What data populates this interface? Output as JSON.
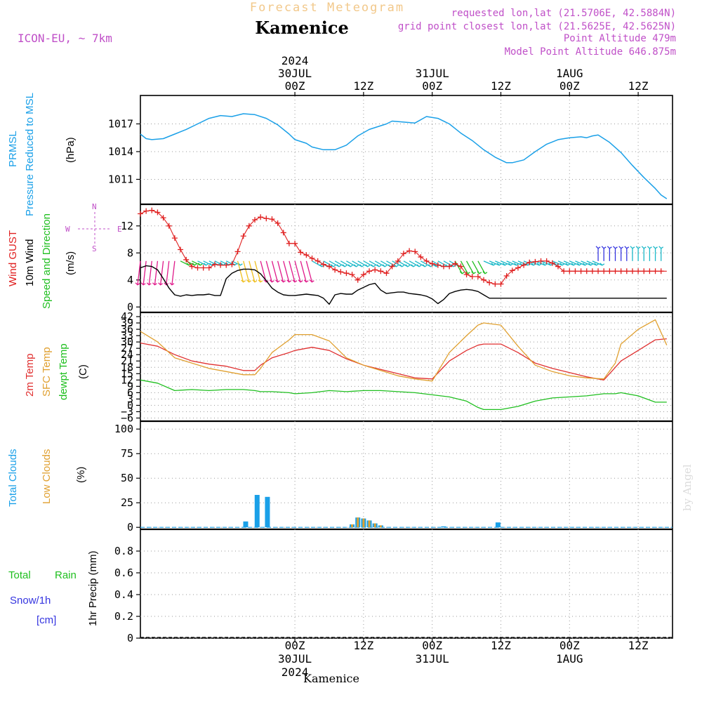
{
  "header": {
    "subtitle": "Forecast Meteogram",
    "location": "Kamenice",
    "model": "ICON-EU, ~ 7km",
    "requested": "requested lon,lat (21.5706E, 42.5884N)",
    "gridpoint": "grid point closest lon,lat (21.5625E, 42.5625N)",
    "point_alt": "Point Altitude 479m",
    "model_alt": "Model Point Altitude 646.875m",
    "footer_location": "Kamenice",
    "watermark": "by Angel"
  },
  "time_axis": {
    "hour_min": -27,
    "hour_max": 66,
    "gridlines_hours": [
      0,
      12,
      24,
      36,
      48,
      60
    ],
    "tick_labels": [
      {
        "h": 0,
        "top": [
          "2024",
          "30JUL",
          "00Z"
        ],
        "bottom": [
          "00Z",
          "30JUL",
          "2024"
        ]
      },
      {
        "h": 12,
        "top": [
          "12Z"
        ],
        "bottom": [
          "12Z"
        ]
      },
      {
        "h": 24,
        "top": [
          "31JUL",
          "00Z"
        ],
        "bottom": [
          "00Z",
          "31JUL"
        ]
      },
      {
        "h": 36,
        "top": [
          "12Z"
        ],
        "bottom": [
          "12Z"
        ]
      },
      {
        "h": 48,
        "top": [
          "1AUG",
          "00Z"
        ],
        "bottom": [
          "00Z",
          "1AUG"
        ]
      },
      {
        "h": 60,
        "top": [
          "12Z"
        ],
        "bottom": [
          "12Z"
        ]
      }
    ]
  },
  "panels": {
    "pressure": {
      "labels": [
        "PRMSL",
        "Pressure Reduced to MSL"
      ],
      "unit": "(hPa)",
      "colors": [
        "#1aa0e8",
        "#1aa0e8"
      ],
      "ylim": [
        1008.3,
        1020
      ],
      "ticks": [
        1011,
        1014,
        1017
      ]
    },
    "wind": {
      "labels": [
        "Wind GUST",
        "10m Wind",
        "Speed and Direction"
      ],
      "unit": "(m/s)",
      "colors": [
        "#e02020",
        "#000000",
        "#1fbf1f"
      ],
      "compass": {
        "n": "N",
        "s": "S",
        "w": "W",
        "e": "E"
      },
      "ylim": [
        -0.8,
        15.2
      ],
      "ticks": [
        0,
        4,
        8,
        12
      ]
    },
    "temperature": {
      "labels": [
        "2m Temp",
        "SFC Temp",
        "dewpt Temp"
      ],
      "unit": "(C)",
      "colors": [
        "#e03030",
        "#e0a030",
        "#1fbf1f"
      ],
      "ylim": [
        -7.5,
        44
      ],
      "ticks": [
        -6,
        -3,
        0,
        3,
        6,
        9,
        12,
        15,
        18,
        21,
        24,
        27,
        30,
        33,
        36,
        39,
        42
      ]
    },
    "clouds": {
      "labels": [
        "Total Clouds",
        "Low Clouds"
      ],
      "unit": "(%)",
      "colors": [
        "#1aa0e8",
        "#e0a030"
      ],
      "ylim": [
        -2,
        108
      ],
      "ticks": [
        0,
        25,
        50,
        75,
        100
      ]
    },
    "precip": {
      "labels": [
        "Total",
        "Rain",
        "Snow/1h",
        "[cm]"
      ],
      "axis_label": "1hr Precip (mm)",
      "colors": [
        "#1fbf1f",
        "#1fbf1f",
        "#3535e0",
        "#3535e0"
      ],
      "ylim": [
        0,
        1
      ],
      "ticks": [
        0,
        0.2,
        0.4,
        0.6,
        0.8
      ]
    }
  },
  "chart_data": [
    {
      "type": "line",
      "title": "PRMSL Pressure Reduced to MSL",
      "ylabel": "hPa",
      "x": [
        -27,
        -26,
        -25,
        -23,
        -21,
        -19,
        -17,
        -15,
        -13,
        -11,
        -9,
        -7,
        -5,
        -3,
        -1,
        0,
        2,
        3,
        5,
        7,
        9,
        11,
        13,
        15,
        16,
        17,
        19,
        21,
        23,
        25,
        27,
        28,
        29,
        31,
        33,
        35,
        37,
        38,
        40,
        42,
        44,
        46,
        48,
        50,
        51,
        52,
        53,
        55,
        57,
        59,
        61,
        63,
        64,
        65
      ],
      "series": [
        {
          "name": "PRMSL",
          "color": "#1aa0e8",
          "values": [
            1015.9,
            1015.4,
            1015.3,
            1015.4,
            1015.9,
            1016.4,
            1017.0,
            1017.6,
            1017.9,
            1017.8,
            1018.1,
            1018.0,
            1017.6,
            1016.9,
            1015.9,
            1015.3,
            1014.9,
            1014.5,
            1014.2,
            1014.2,
            1014.7,
            1015.7,
            1016.4,
            1016.8,
            1017.0,
            1017.3,
            1017.2,
            1017.1,
            1017.8,
            1017.6,
            1017.0,
            1016.5,
            1016.0,
            1015.2,
            1014.2,
            1013.4,
            1012.8,
            1012.8,
            1013.1,
            1014.0,
            1014.8,
            1015.3,
            1015.5,
            1015.6,
            1015.5,
            1015.7,
            1015.8,
            1015.0,
            1013.9,
            1012.5,
            1011.2,
            1010.0,
            1009.3,
            1008.9
          ]
        }
      ]
    },
    {
      "type": "line",
      "title": "Wind GUST / 10m Wind",
      "ylabel": "m/s",
      "x": [
        -27,
        -26,
        -25,
        -24,
        -23,
        -22,
        -21,
        -20,
        -19,
        -18,
        -17,
        -16,
        -15,
        -14,
        -13,
        -12,
        -11,
        -10,
        -9,
        -8,
        -7,
        -6,
        -5,
        -4,
        -3,
        -2,
        -1,
        0,
        1,
        2,
        3,
        4,
        5,
        6,
        7,
        8,
        9,
        10,
        11,
        12,
        13,
        14,
        15,
        16,
        17,
        18,
        19,
        20,
        21,
        22,
        23,
        24,
        25,
        26,
        27,
        28,
        29,
        30,
        31,
        32,
        33,
        34,
        35,
        36,
        37,
        38,
        39,
        40,
        41,
        42,
        43,
        44,
        45,
        46,
        47,
        48,
        49,
        50,
        51,
        52,
        53,
        54,
        55,
        56,
        57,
        58,
        59,
        60,
        61,
        62,
        63,
        64,
        65
      ],
      "series": [
        {
          "name": "Wind GUST",
          "color": "#e02020",
          "values": [
            13.8,
            14.2,
            14.3,
            14.0,
            13.2,
            12.0,
            10.2,
            8.5,
            7.0,
            6.0,
            5.8,
            5.8,
            5.8,
            6.3,
            6.2,
            6.2,
            6.3,
            8.2,
            10.5,
            12.0,
            12.9,
            13.3,
            13.1,
            13.0,
            12.4,
            11.0,
            9.4,
            9.4,
            8.1,
            7.7,
            7.2,
            6.8,
            6.3,
            6.0,
            5.5,
            5.2,
            5.0,
            4.8,
            4.0,
            4.8,
            5.3,
            5.5,
            5.3,
            5.0,
            6.0,
            6.8,
            7.9,
            8.3,
            8.2,
            7.4,
            6.8,
            6.4,
            6.2,
            6.0,
            6.0,
            6.4,
            6.0,
            4.8,
            4.5,
            4.5,
            4.0,
            3.6,
            3.4,
            3.4,
            4.6,
            5.4,
            5.8,
            6.2,
            6.6,
            6.7,
            6.8,
            6.8,
            6.5,
            6.0,
            5.3,
            5.3,
            5.3,
            5.3,
            5.3,
            5.3,
            5.3,
            5.3,
            5.3,
            5.3,
            5.3,
            5.3,
            5.3,
            5.3,
            5.3,
            5.3,
            5.3,
            5.3,
            5.3
          ]
        },
        {
          "name": "10m Wind",
          "color": "#000000",
          "values": [
            5.8,
            6.1,
            6.0,
            5.5,
            4.2,
            2.8,
            1.8,
            1.6,
            1.8,
            1.7,
            1.8,
            1.8,
            1.9,
            1.7,
            1.7,
            4.2,
            5.0,
            5.4,
            5.6,
            5.6,
            5.5,
            4.9,
            3.9,
            2.8,
            2.2,
            1.8,
            1.7,
            1.7,
            1.8,
            1.9,
            1.8,
            1.7,
            1.3,
            0.4,
            1.8,
            2.0,
            1.9,
            1.9,
            2.5,
            2.9,
            3.3,
            3.5,
            2.5,
            2.0,
            2.1,
            2.2,
            2.2,
            2.0,
            1.9,
            1.8,
            1.6,
            1.2,
            0.5,
            1.1,
            2.0,
            2.3,
            2.5,
            2.6,
            2.5,
            2.3,
            1.8,
            1.3,
            1.3,
            1.3,
            1.3,
            1.3,
            1.3,
            1.3,
            1.3,
            1.3,
            1.3,
            1.3,
            1.3,
            1.3,
            1.3,
            1.3,
            1.3,
            1.3,
            1.3,
            1.3,
            1.3,
            1.3,
            1.3,
            1.3,
            1.3,
            1.3,
            1.3,
            1.3,
            1.3,
            1.3,
            1.3,
            1.3,
            1.3
          ]
        }
      ]
    },
    {
      "type": "line",
      "title": "2m / SFC / dewpoint Temperature",
      "ylabel": "C",
      "x": [
        -27,
        -24,
        -21,
        -18,
        -15,
        -12,
        -9,
        -7,
        -6,
        -4,
        -1,
        0,
        3,
        6,
        9,
        12,
        15,
        18,
        21,
        24,
        27,
        30,
        32,
        33,
        36,
        39,
        42,
        45,
        48,
        51,
        54,
        56,
        57,
        60,
        63,
        65
      ],
      "series": [
        {
          "name": "2m Temp",
          "color": "#e03030",
          "values": [
            29.5,
            28.0,
            24.0,
            21.0,
            19.5,
            18.5,
            16.5,
            16.5,
            19.0,
            22.5,
            25.0,
            26.0,
            27.5,
            26.0,
            22.0,
            19.0,
            17.0,
            15.0,
            13.0,
            12.5,
            21.0,
            26.0,
            28.5,
            29.0,
            29.0,
            25.0,
            20.0,
            17.5,
            15.5,
            13.5,
            12.0,
            18.0,
            21.0,
            26.0,
            31.0,
            31.5
          ]
        },
        {
          "name": "SFC Temp",
          "color": "#e0a030",
          "values": [
            35.0,
            30.0,
            22.5,
            20.0,
            17.5,
            16.0,
            14.5,
            14.5,
            17.5,
            25.0,
            31.0,
            33.5,
            33.5,
            30.5,
            22.5,
            19.0,
            16.5,
            14.0,
            12.5,
            11.5,
            25.0,
            33.0,
            38.0,
            39.0,
            38.0,
            28.0,
            19.0,
            16.0,
            14.0,
            13.0,
            12.5,
            20.0,
            29.0,
            36.0,
            40.5,
            28.5
          ]
        },
        {
          "name": "dewpt Temp",
          "color": "#1fbf1f",
          "values": [
            12.0,
            10.5,
            7.0,
            7.5,
            7.0,
            7.5,
            7.5,
            7.0,
            6.5,
            6.5,
            6.0,
            5.5,
            6.0,
            7.0,
            6.5,
            7.0,
            7.0,
            6.5,
            6.0,
            5.0,
            4.0,
            2.0,
            -1.0,
            -2.0,
            -2.0,
            -0.5,
            2.0,
            3.5,
            4.0,
            4.5,
            5.5,
            5.5,
            6.0,
            4.5,
            1.5,
            1.5
          ]
        }
      ]
    },
    {
      "type": "bar",
      "title": "Total / Low Clouds",
      "ylabel": "%",
      "categories": [
        -8.6,
        -6.6,
        -4.8,
        10.0,
        11.0,
        12.0,
        13.0,
        14.0,
        15.0,
        26.0,
        35.5
      ],
      "series": [
        {
          "name": "Total Clouds",
          "color": "#1aa0e8",
          "values": [
            6,
            33,
            31,
            3,
            10,
            9,
            7,
            4,
            2,
            1,
            5
          ]
        },
        {
          "name": "Low Clouds",
          "color": "#e0a030",
          "values": [
            0,
            0,
            0,
            3,
            10,
            9,
            7,
            4,
            2,
            0,
            0
          ]
        }
      ]
    },
    {
      "type": "bar",
      "title": "Total Rain / Snow",
      "ylabel": "1hr Precip (mm)",
      "categories": [
        0,
        12,
        24,
        36,
        48,
        60
      ],
      "series": [
        {
          "name": "Total Rain",
          "color": "#1fbf1f",
          "values": [
            0,
            0,
            0,
            0,
            0,
            0
          ]
        }
      ],
      "ylim": [
        0,
        1
      ]
    }
  ]
}
